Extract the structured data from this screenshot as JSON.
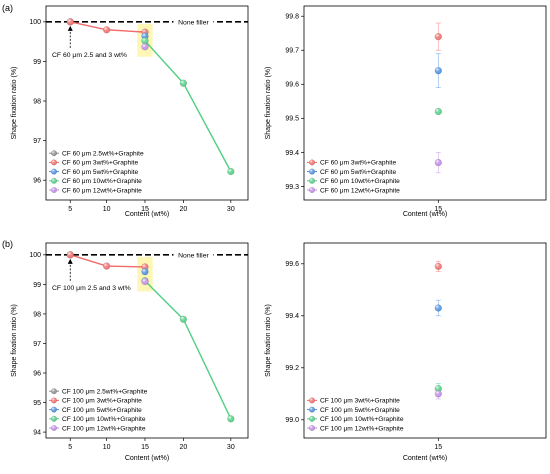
{
  "panel_labels": [
    "(a)",
    "(b)"
  ],
  "colors": {
    "gray": "#8c8c8c",
    "red": "#f26a6a",
    "blue": "#4a8fe0",
    "green": "#4fcf83",
    "purple": "#c08ae6",
    "highlight": "#fdf6b4"
  },
  "chart_data": [
    {
      "type": "line",
      "panel": "a-left",
      "xlabel": "Content (wt%)",
      "ylabel": "Shape fixation ratio (%)",
      "xlim": [
        3,
        33
      ],
      "ylim": [
        95.5,
        100.4
      ],
      "xticks": [
        5,
        10,
        15,
        20,
        30
      ],
      "xtick_positions": [
        5,
        10,
        15,
        20,
        30
      ],
      "yticks": [
        96,
        97,
        98,
        99,
        100
      ],
      "reference_line": {
        "y": 100,
        "label": "None filler"
      },
      "annotation": "CF 60 μm 2.5 and 3 wt%",
      "highlight_x": [
        14,
        16
      ],
      "series": [
        {
          "name": "CF 60 μm 2.5wt%+Graphite",
          "color": "gray",
          "x": [
            5
          ],
          "y": [
            100
          ]
        },
        {
          "name": "CF 60 μm 3wt%+Graphite",
          "color": "red",
          "x": [
            5,
            10,
            15
          ],
          "y": [
            100,
            99.8,
            99.74
          ]
        },
        {
          "name": "CF 60 μm 5wt%+Graphite",
          "color": "blue",
          "x": [
            15
          ],
          "y": [
            99.64
          ]
        },
        {
          "name": "CF 60 μm 10wt%+Graphite",
          "color": "green",
          "x": [
            15,
            20,
            30
          ],
          "y": [
            99.52,
            98.45,
            96.22
          ]
        },
        {
          "name": "CF 60 μm 12wt%+Graphite",
          "color": "purple",
          "x": [
            15
          ],
          "y": [
            99.37
          ]
        }
      ],
      "legend": "bottom-left"
    },
    {
      "type": "scatter",
      "panel": "a-right",
      "xlabel": "Content (wt%)",
      "ylabel": "Shape fixation ratio (%)",
      "ylim": [
        99.26,
        99.83
      ],
      "xticks": [
        15
      ],
      "yticks": [
        99.3,
        99.4,
        99.5,
        99.6,
        99.7,
        99.8
      ],
      "series": [
        {
          "name": "CF 60 μm 3wt%+Graphite",
          "color": "red",
          "x": [
            15
          ],
          "y": [
            99.74
          ],
          "err": 0.04
        },
        {
          "name": "CF 60 μm 5wt%+Graphite",
          "color": "blue",
          "x": [
            15
          ],
          "y": [
            99.64
          ],
          "err": 0.05
        },
        {
          "name": "CF 60 μm 10wt%+Graphite",
          "color": "green",
          "x": [
            15
          ],
          "y": [
            99.52
          ],
          "err": 0
        },
        {
          "name": "CF 60 μm 12wt%+Graphite",
          "color": "purple",
          "x": [
            15
          ],
          "y": [
            99.37
          ],
          "err": 0.03
        }
      ],
      "legend": "bottom-left"
    },
    {
      "type": "line",
      "panel": "b-left",
      "xlabel": "Content (wt%)",
      "ylabel": "Shape fixation ratio (%)",
      "xlim": [
        3,
        33
      ],
      "ylim": [
        93.8,
        100.4
      ],
      "xticks": [
        5,
        10,
        15,
        20,
        30
      ],
      "xtick_positions": [
        5,
        10,
        15,
        20,
        30
      ],
      "yticks": [
        94,
        95,
        96,
        97,
        98,
        99,
        100
      ],
      "reference_line": {
        "y": 100,
        "label": "None filler"
      },
      "annotation": "CF 100 μm 2.5 and 3 wt%",
      "highlight_x": [
        14,
        16
      ],
      "series": [
        {
          "name": "CF 100 μm 2.5wt%+Graphite",
          "color": "gray",
          "x": [
            5
          ],
          "y": [
            100
          ]
        },
        {
          "name": "CF 100 μm 3wt%+Graphite",
          "color": "red",
          "x": [
            5,
            10,
            15
          ],
          "y": [
            100,
            99.62,
            99.59
          ]
        },
        {
          "name": "CF 100 μm 5wt%+Graphite",
          "color": "blue",
          "x": [
            15
          ],
          "y": [
            99.43
          ]
        },
        {
          "name": "CF 100 μm 10wt%+Graphite",
          "color": "green",
          "x": [
            15,
            20,
            30
          ],
          "y": [
            99.12,
            97.82,
            94.45
          ]
        },
        {
          "name": "CF 100 μm 12wt%+Graphite",
          "color": "purple",
          "x": [
            15
          ],
          "y": [
            99.1
          ]
        }
      ],
      "legend": "bottom-left"
    },
    {
      "type": "scatter",
      "panel": "b-right",
      "xlabel": "Content (wt%)",
      "ylabel": "Shape fixation ratio (%)",
      "ylim": [
        98.93,
        99.68
      ],
      "xticks": [
        15
      ],
      "yticks": [
        99.0,
        99.2,
        99.4,
        99.6
      ],
      "series": [
        {
          "name": "CF 100 μm 3wt%+Graphite",
          "color": "red",
          "x": [
            15
          ],
          "y": [
            99.59
          ],
          "err": 0.02
        },
        {
          "name": "CF 100 μm 5wt%+Graphite",
          "color": "blue",
          "x": [
            15
          ],
          "y": [
            99.43
          ],
          "err": 0.03
        },
        {
          "name": "CF 100 μm 10wt%+Graphite",
          "color": "green",
          "x": [
            15
          ],
          "y": [
            99.12
          ],
          "err": 0.02
        },
        {
          "name": "CF 100 μm 12wt%+Graphite",
          "color": "purple",
          "x": [
            15
          ],
          "y": [
            99.1
          ],
          "err": 0.02
        }
      ],
      "legend": "bottom-left"
    }
  ]
}
